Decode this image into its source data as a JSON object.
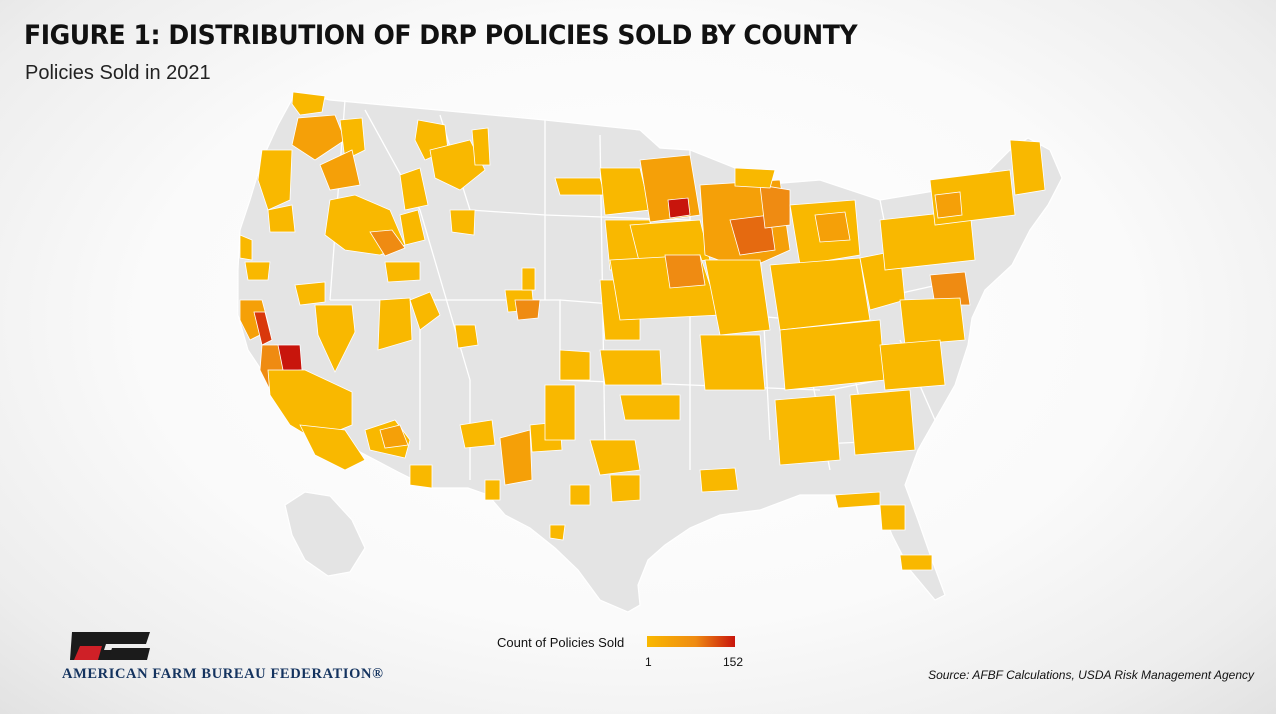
{
  "figure": {
    "title": "FIGURE 1: DISTRIBUTION OF DRP POLICIES SOLD BY COUNTY",
    "subtitle": "Policies Sold in 2021"
  },
  "legend": {
    "title": "Count of Policies Sold",
    "min_label": "1",
    "max_label": "152",
    "min_value": 1,
    "max_value": 152,
    "color_low": "#f9b800",
    "color_mid": "#ef8b12",
    "color_high": "#c8150c"
  },
  "map": {
    "land_color": "#e4e4e4",
    "border_color": "#ffffff"
  },
  "branding": {
    "org_name": "AMERICAN FARM BUREAU FEDERATION®",
    "logo_icon": "fb-logo-icon",
    "logo_color": "#1b1b1b",
    "logo_accent": "#cf2027"
  },
  "source": "Source: AFBF Calculations, USDA Risk Management Agency"
}
